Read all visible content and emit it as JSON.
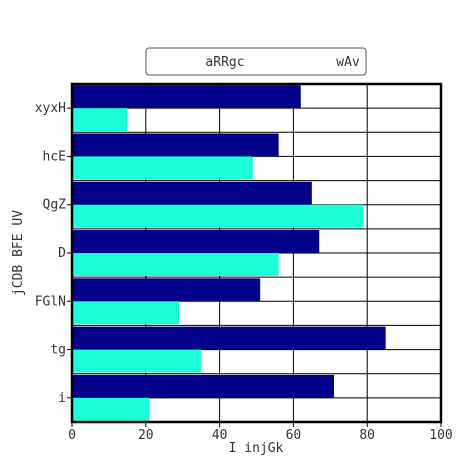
{
  "chart_data": {
    "type": "bar",
    "orientation": "horizontal",
    "categories": [
      "xyxH",
      "hcE",
      "QgZ",
      "D",
      "FGlN",
      "tg",
      "i"
    ],
    "series": [
      {
        "name": "aRRgc",
        "color": "#00008b",
        "values": [
          62,
          56,
          65,
          67,
          51,
          85,
          71
        ]
      },
      {
        "name": "wAv",
        "color": "#1affd5",
        "values": [
          15,
          49,
          79,
          56,
          29,
          35,
          21
        ]
      }
    ],
    "xlabel": "I injGk",
    "ylabel": "jCDB BFE UV",
    "xlim": [
      0,
      100
    ],
    "xticks": [
      0,
      20,
      40,
      60,
      80,
      100
    ],
    "grid": true,
    "legend_position": "top-center"
  }
}
